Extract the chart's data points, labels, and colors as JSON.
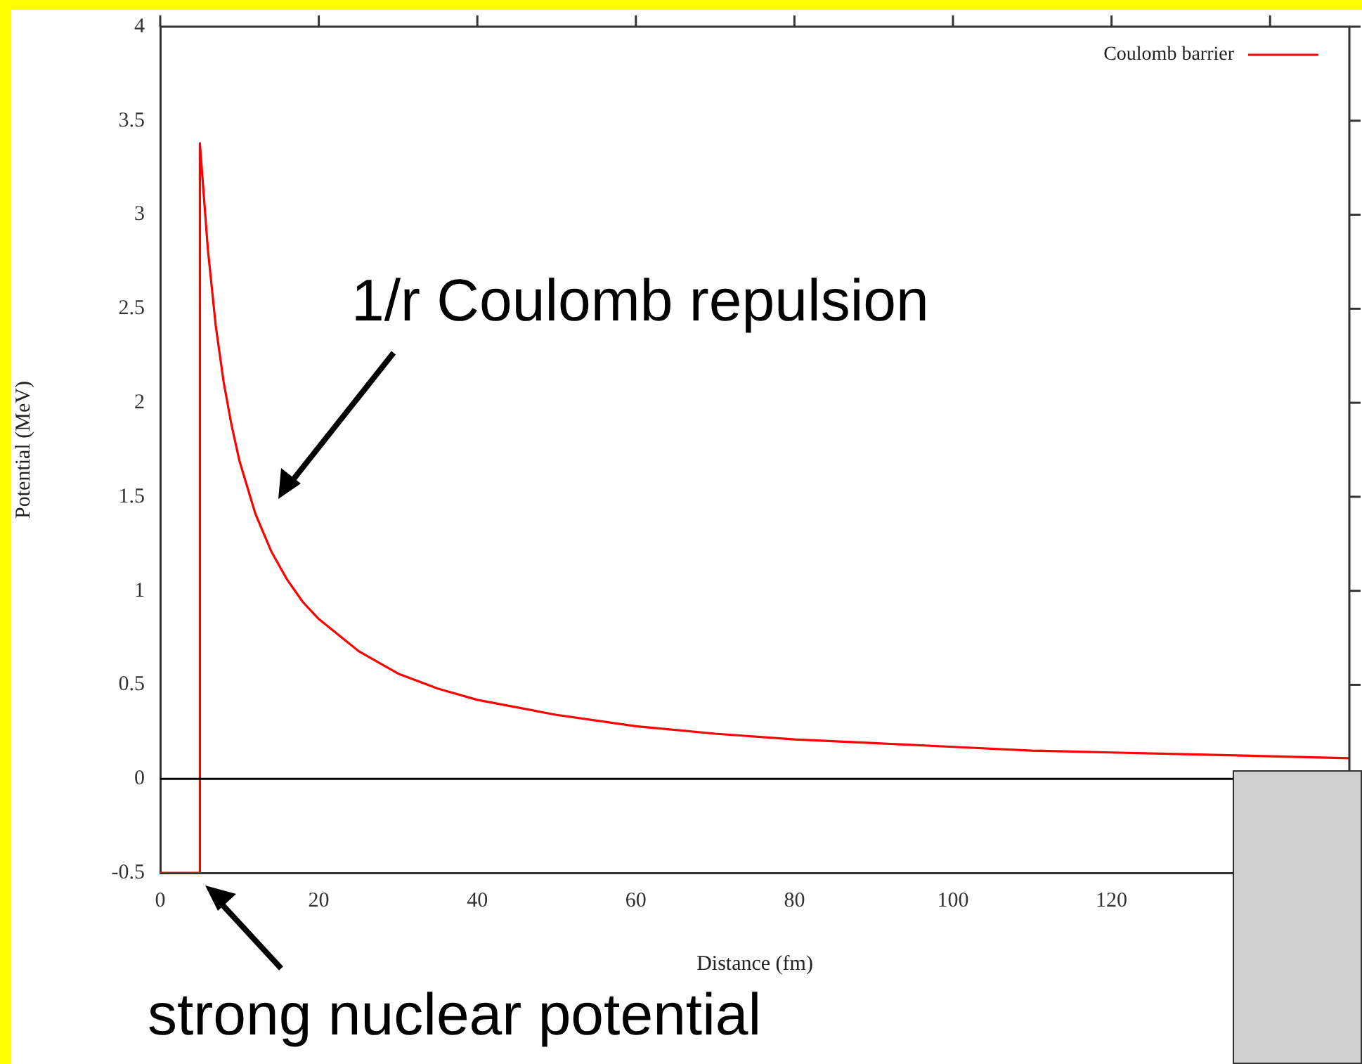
{
  "chart_data": {
    "type": "line",
    "xlabel": "Distance (fm)",
    "ylabel": "Potential (MeV)",
    "x": [
      0,
      5,
      5,
      6,
      7,
      8,
      9,
      10,
      12,
      14,
      16,
      18,
      20,
      25,
      30,
      35,
      40,
      50,
      60,
      70,
      80,
      90,
      100,
      110,
      120,
      130,
      140,
      150
    ],
    "series": [
      {
        "name": "Coulomb barrier",
        "color": "#ff0000",
        "values": [
          -0.5,
          -0.5,
          3.38,
          2.82,
          2.41,
          2.11,
          1.88,
          1.69,
          1.41,
          1.21,
          1.06,
          0.94,
          0.85,
          0.68,
          0.56,
          0.48,
          0.42,
          0.34,
          0.28,
          0.24,
          0.21,
          0.19,
          0.17,
          0.15,
          0.14,
          0.13,
          0.12,
          0.11
        ]
      }
    ],
    "xlim": [
      0,
      150
    ],
    "xticks": [
      0,
      20,
      40,
      60,
      80,
      100,
      120,
      {
        "value": 140,
        "label": null
      }
    ],
    "ylim": [
      -0.5,
      4
    ],
    "yticks": [
      -0.5,
      0,
      0.5,
      1,
      1.5,
      2,
      2.5,
      3,
      3.5,
      4
    ],
    "ref_lines": [
      {
        "axis": "y",
        "value": 0,
        "color": "#000000"
      }
    ],
    "annotations": [
      "1/r Coulomb repulsion",
      "strong nuclear potential"
    ],
    "legend": "top right",
    "grid": false,
    "marker": "none",
    "line_style": "solid"
  }
}
